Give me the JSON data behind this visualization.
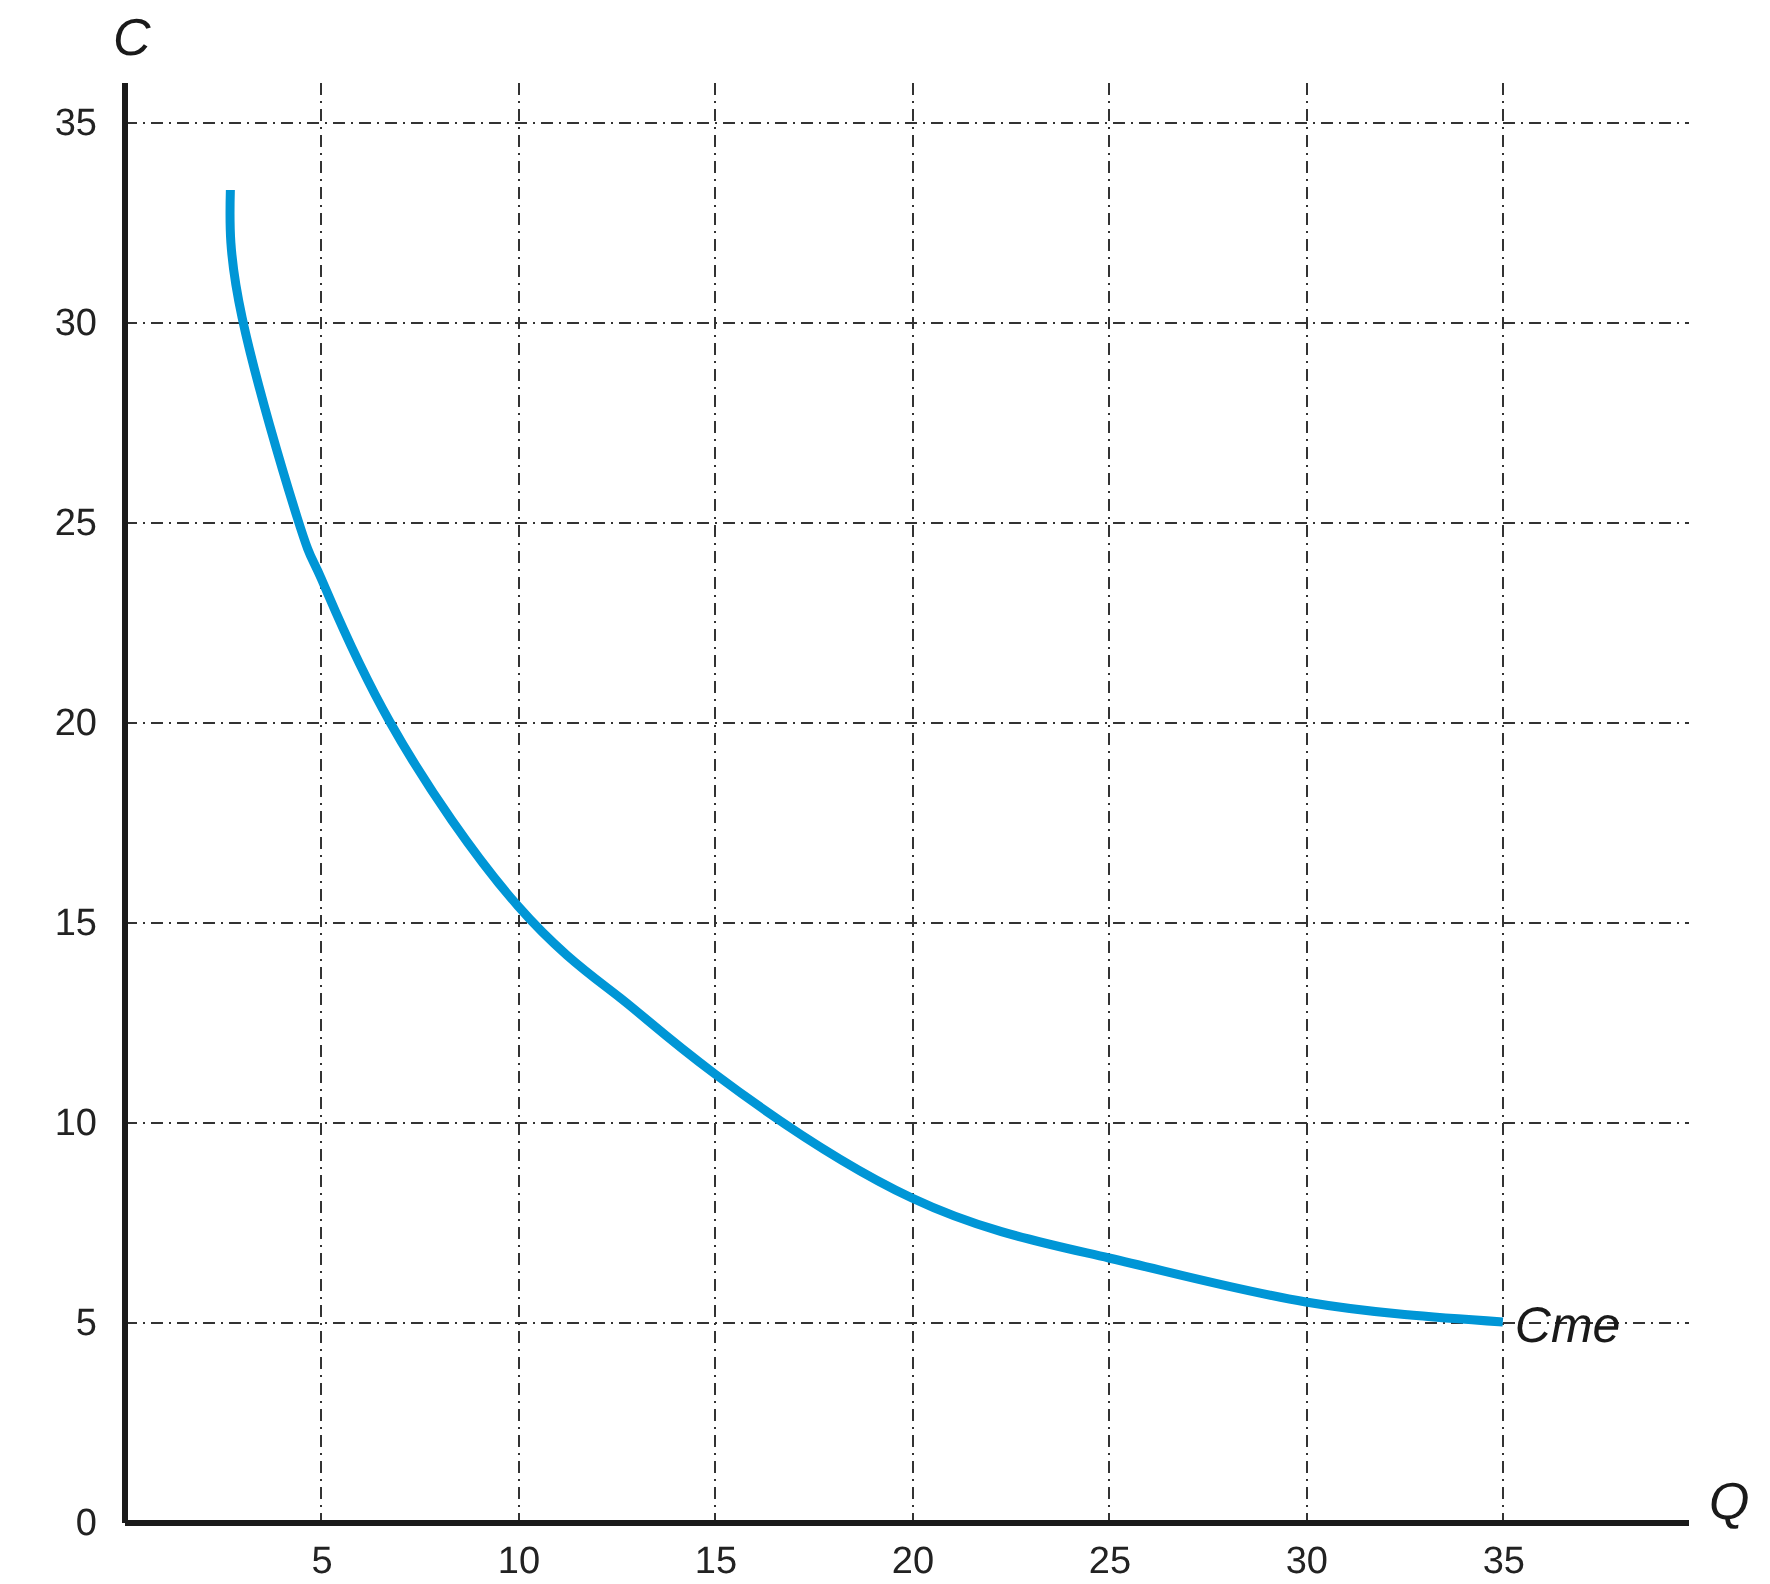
{
  "chart_data": {
    "type": "line",
    "xlabel": "Q",
    "ylabel": "C",
    "x": [
      2.7,
      3,
      4.4,
      5,
      6.75,
      10,
      12.6,
      15,
      20,
      25,
      30,
      35
    ],
    "series": [
      {
        "name": "Cme",
        "color": "#0096d6",
        "values": [
          33.3,
          30.1,
          25.1,
          23.6,
          20,
          15.4,
          13.1,
          11.2,
          8.1,
          6.6,
          5.5,
          5.0
        ]
      }
    ],
    "xlim": [
      0,
      39.7
    ],
    "ylim": [
      0,
      36
    ],
    "xticks": [
      5,
      10,
      15,
      20,
      25,
      30,
      35
    ],
    "yticks": [
      0,
      5,
      10,
      15,
      20,
      25,
      30,
      35
    ],
    "grid": true,
    "legend": false,
    "marker": "none",
    "line_style": "solid"
  }
}
